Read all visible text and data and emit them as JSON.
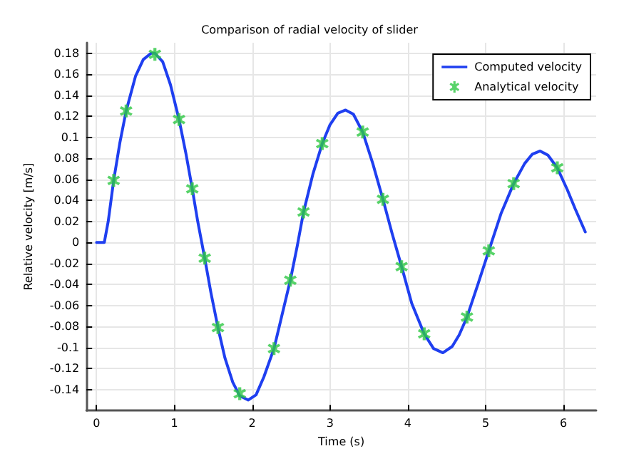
{
  "chart_data": {
    "type": "line",
    "title": "Comparison of radial velocity of slider",
    "xlabel": "Time (s)",
    "ylabel": "Relative velocity [m/s]",
    "xlim": [
      -0.13,
      6.42
    ],
    "xticks": [
      0,
      1,
      2,
      3,
      4,
      5,
      6
    ],
    "ylim": [
      -0.16,
      0.19
    ],
    "yticks": [
      -0.14,
      -0.12,
      -0.1,
      -0.08,
      -0.06,
      -0.04,
      -0.02,
      0,
      0.02,
      0.04,
      0.06,
      0.08,
      0.1,
      0.12,
      0.14,
      0.16,
      0.18
    ],
    "grid": true,
    "legend": "top right",
    "series": [
      {
        "name": "Computed velocity",
        "color": "#1f3ff0",
        "marker": "none",
        "line_style": "solid",
        "x": [
          0,
          0.1,
          0.15,
          0.22,
          0.3,
          0.38,
          0.5,
          0.6,
          0.7,
          0.75,
          0.85,
          0.95,
          1.06,
          1.15,
          1.23,
          1.3,
          1.39,
          1.47,
          1.56,
          1.65,
          1.75,
          1.84,
          1.95,
          2.05,
          2.15,
          2.28,
          2.38,
          2.49,
          2.58,
          2.66,
          2.78,
          2.9,
          3.0,
          3.1,
          3.2,
          3.3,
          3.42,
          3.55,
          3.68,
          3.8,
          3.92,
          4.05,
          4.21,
          4.33,
          4.45,
          4.57,
          4.66,
          4.76,
          4.9,
          5.04,
          5.2,
          5.36,
          5.5,
          5.6,
          5.7,
          5.8,
          5.92,
          6.05,
          6.15,
          6.28
        ],
        "values": [
          0,
          0,
          0.02,
          0.059,
          0.095,
          0.125,
          0.158,
          0.174,
          0.18,
          0.18,
          0.172,
          0.15,
          0.117,
          0.084,
          0.051,
          0.02,
          -0.015,
          -0.048,
          -0.081,
          -0.11,
          -0.133,
          -0.146,
          -0.15,
          -0.145,
          -0.128,
          -0.101,
          -0.07,
          -0.036,
          -0.003,
          0.029,
          0.065,
          0.094,
          0.112,
          0.123,
          0.126,
          0.122,
          0.105,
          0.075,
          0.041,
          0.008,
          -0.023,
          -0.058,
          -0.087,
          -0.101,
          -0.105,
          -0.099,
          -0.088,
          -0.071,
          -0.04,
          -0.008,
          0.028,
          0.056,
          0.075,
          0.084,
          0.087,
          0.083,
          0.071,
          0.05,
          0.032,
          0.01
        ]
      },
      {
        "name": "Analytical velocity",
        "type": "scatter",
        "color": "#2ec843",
        "marker": "star",
        "x": [
          0.22,
          0.38,
          0.75,
          1.06,
          1.23,
          1.39,
          1.56,
          1.84,
          2.28,
          2.49,
          2.66,
          2.9,
          3.42,
          3.68,
          3.92,
          4.21,
          4.76,
          5.04,
          5.36,
          5.92
        ],
        "values": [
          0.059,
          0.125,
          0.179,
          0.117,
          0.051,
          -0.015,
          -0.081,
          -0.144,
          -0.101,
          -0.036,
          0.029,
          0.094,
          0.105,
          0.041,
          -0.023,
          -0.087,
          -0.071,
          -0.008,
          0.056,
          0.071
        ]
      }
    ]
  }
}
